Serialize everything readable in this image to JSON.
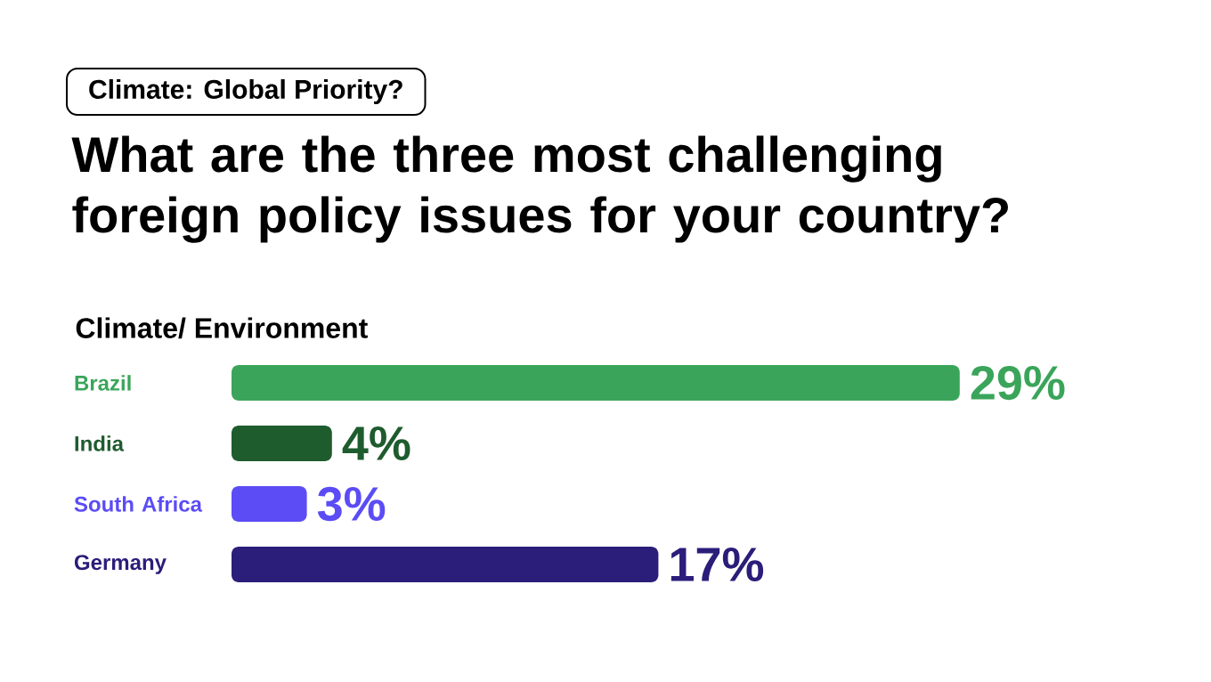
{
  "chart_data": {
    "type": "bar",
    "orientation": "horizontal",
    "annotations": [
      "Climate: Global Priority?"
    ],
    "title": "What are the three most challenging foreign policy issues for your country?",
    "subtitle": "Climate/ Environment",
    "categories": [
      "Brazil",
      "India",
      "South Africa",
      "Germany"
    ],
    "values": [
      29,
      4,
      3,
      17
    ],
    "value_labels": [
      "29%",
      "4%",
      "3%",
      "17%"
    ],
    "colors": [
      "#3aa55a",
      "#1e5c2e",
      "#5b4cf5",
      "#2b1d7a"
    ]
  }
}
